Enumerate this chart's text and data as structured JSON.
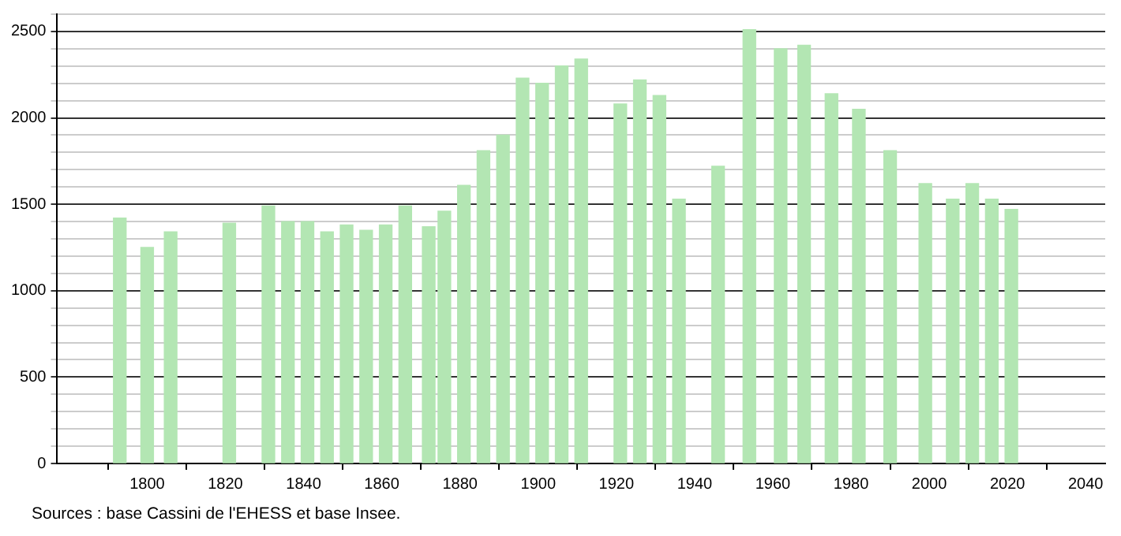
{
  "chart_data": {
    "type": "bar",
    "x": [
      1793,
      1800,
      1806,
      1821,
      1831,
      1836,
      1841,
      1846,
      1851,
      1856,
      1861,
      1866,
      1872,
      1876,
      1881,
      1886,
      1891,
      1896,
      1901,
      1906,
      1911,
      1921,
      1926,
      1931,
      1936,
      1946,
      1954,
      1962,
      1968,
      1975,
      1982,
      1990,
      1999,
      2006,
      2011,
      2016,
      2021
    ],
    "values": [
      1420,
      1250,
      1340,
      1390,
      1490,
      1400,
      1400,
      1340,
      1380,
      1350,
      1380,
      1490,
      1370,
      1460,
      1610,
      1810,
      1900,
      2230,
      2200,
      2300,
      2340,
      2080,
      2220,
      2130,
      1530,
      1720,
      2510,
      2400,
      2420,
      2140,
      2050,
      1810,
      1620,
      1530,
      1620,
      1530,
      1470
    ],
    "color": "#b3e6b3",
    "xlim": [
      1777,
      2045
    ],
    "xticks": [
      1800,
      1820,
      1840,
      1860,
      1880,
      1900,
      1920,
      1940,
      1960,
      1980,
      2000,
      2020,
      2040
    ],
    "ylim": [
      0,
      2600
    ],
    "yticks": [
      0,
      {
        "value": 100,
        "label": null
      },
      {
        "value": 200,
        "label": null
      },
      {
        "value": 300,
        "label": null
      },
      {
        "value": 400,
        "label": null
      },
      500,
      {
        "value": 600,
        "label": null
      },
      {
        "value": 700,
        "label": null
      },
      {
        "value": 800,
        "label": null
      },
      {
        "value": 900,
        "label": null
      },
      1000,
      {
        "value": 1100,
        "label": null
      },
      {
        "value": 1200,
        "label": null
      },
      {
        "value": 1300,
        "label": null
      },
      {
        "value": 1400,
        "label": null
      },
      1500,
      {
        "value": 1600,
        "label": null
      },
      {
        "value": 1700,
        "label": null
      },
      {
        "value": 1800,
        "label": null
      },
      {
        "value": 1900,
        "label": null
      },
      2000,
      {
        "value": 2100,
        "label": null
      },
      {
        "value": 2200,
        "label": null
      },
      {
        "value": 2300,
        "label": null
      },
      {
        "value": 2400,
        "label": null
      },
      2500,
      {
        "value": 2600,
        "label": null
      }
    ],
    "grid": "y",
    "annotations": [
      "Sources : base Cassini de l'EHESS et base Insee."
    ]
  }
}
